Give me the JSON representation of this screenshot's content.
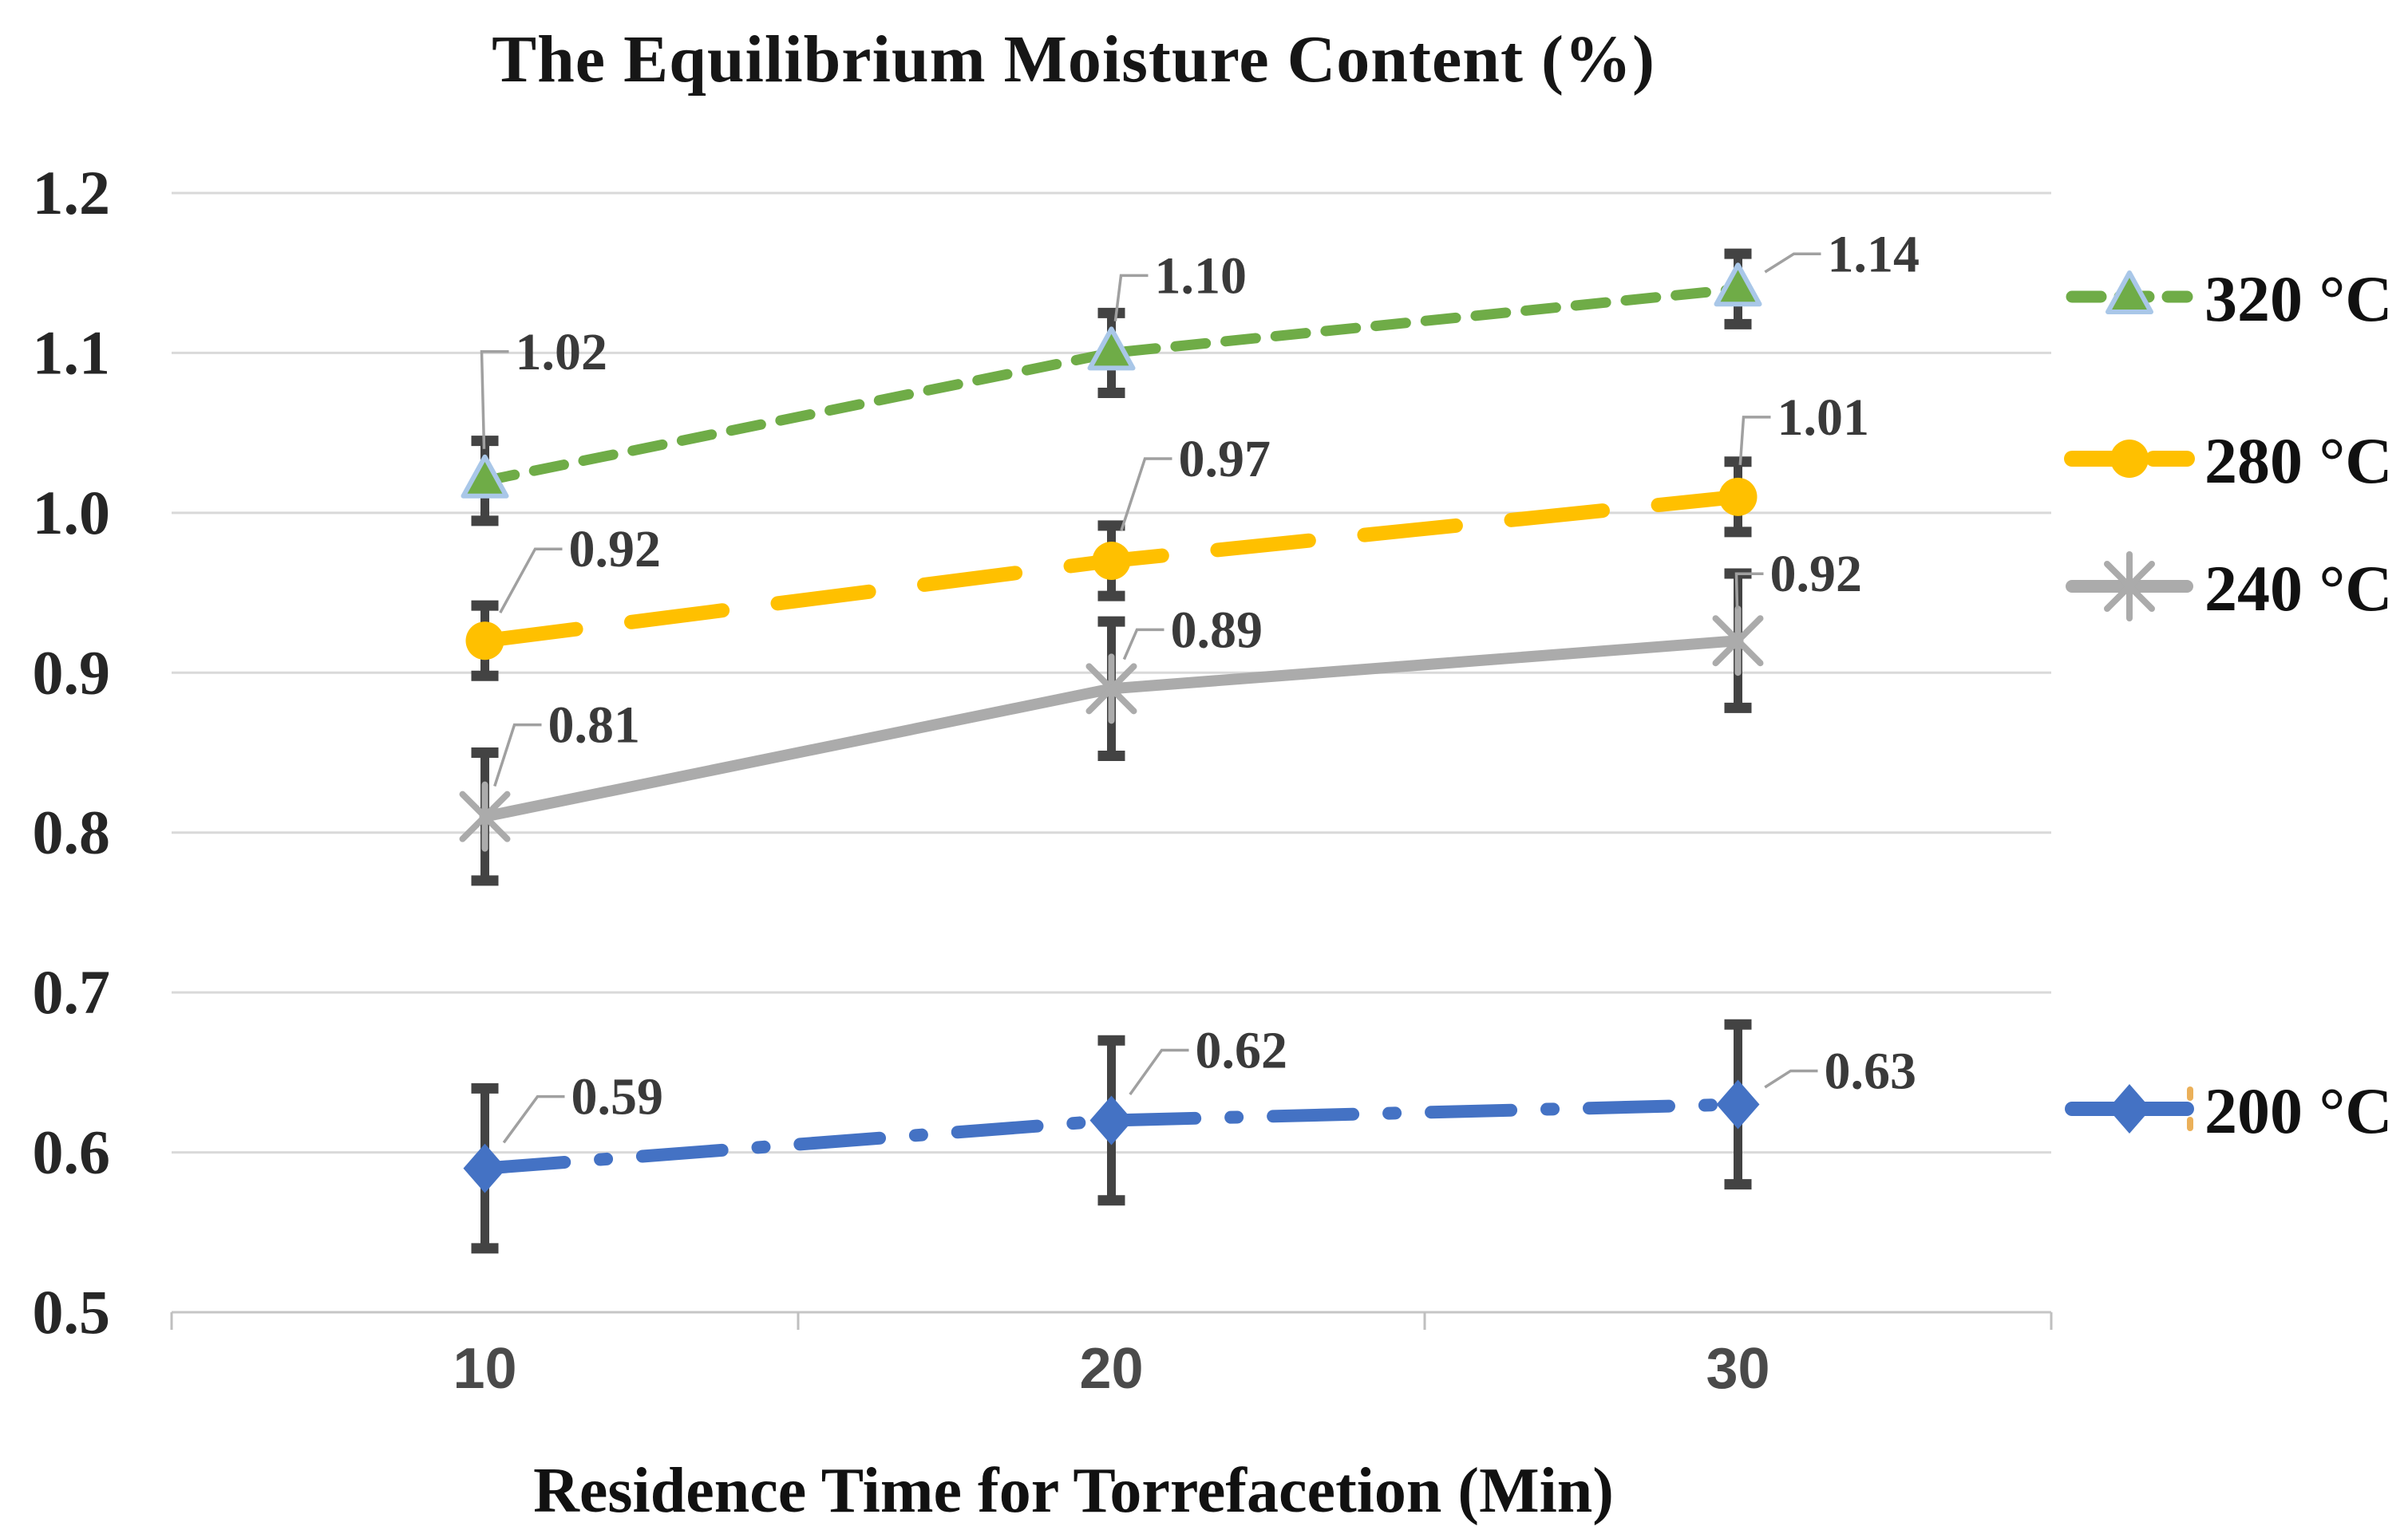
{
  "chart_data": {
    "type": "line",
    "title": "The Equilibrium Moisture Content (%)",
    "xlabel": "Residence Time for Torrefacetion (Min)",
    "ylabel": "",
    "x_categories": [
      "10",
      "20",
      "30"
    ],
    "ylim": [
      0.5,
      1.2
    ],
    "ytick_step": 0.1,
    "ytick_labels": [
      "1.2",
      "1.1",
      "1.0",
      "0.9",
      "0.8",
      "0.7",
      "0.6",
      "0.5"
    ],
    "grid": true,
    "legend_position": "right",
    "series": [
      {
        "name": "320 °C",
        "color": "#6FAC47",
        "marker": "triangle",
        "marker_stroke": "#A9C7E8",
        "line_style": "dash",
        "line_width": 13,
        "values": [
          1.02,
          1.1,
          1.14
        ],
        "labels": [
          "1.02",
          "1.10",
          "1.14"
        ],
        "errors": [
          0.025,
          0.025,
          0.022
        ],
        "label_offsets": [
          [
            38,
            -140
          ],
          [
            54,
            -75
          ],
          [
            112,
            -22
          ]
        ]
      },
      {
        "name": "280 °C",
        "color": "#FFC000",
        "marker": "circle",
        "marker_stroke": "",
        "line_style": "long-dash",
        "line_width": 18,
        "values": [
          0.92,
          0.97,
          1.01
        ],
        "labels": [
          "0.92",
          "0.97",
          "1.01"
        ],
        "errors": [
          0.022,
          0.022,
          0.022
        ],
        "label_offsets": [
          [
            105,
            -93
          ],
          [
            84,
            -106
          ],
          [
            49,
            -78
          ]
        ]
      },
      {
        "name": "240 °C",
        "color": "#ABABAB",
        "marker": "asterisk",
        "marker_stroke": "",
        "line_style": "solid",
        "line_width": 14,
        "values": [
          0.81,
          0.89,
          0.92
        ],
        "labels": [
          "0.81",
          "0.89",
          "0.92"
        ],
        "errors": [
          0.04,
          0.042,
          0.042
        ],
        "label_offsets": [
          [
            79,
            -93
          ],
          [
            74,
            -52
          ],
          [
            40,
            -62
          ]
        ]
      },
      {
        "name": "200 °C",
        "color": "#4472C4",
        "marker": "diamond",
        "marker_stroke": "",
        "line_style": "dash-dot",
        "line_width": 16,
        "values": [
          0.59,
          0.62,
          0.63
        ],
        "labels": [
          "0.59",
          "0.62",
          "0.63"
        ],
        "errors": [
          0.05,
          0.05,
          0.05
        ],
        "label_offsets": [
          [
            108,
            -68
          ],
          [
            105,
            -66
          ],
          [
            108,
            -20
          ]
        ]
      }
    ],
    "colors": {
      "gridline": "#D9D9D9",
      "axis_line": "#C6C6C6",
      "tick": "#BFBFBF",
      "error_bar": "#434343",
      "leader": "#A0A0A0",
      "data_label": "#3A3A3A",
      "y_tick_label": "#262626",
      "x_tick_label": "#4A4A4A",
      "legend_text": "#111111",
      "artifact": "#E8A23C"
    }
  }
}
